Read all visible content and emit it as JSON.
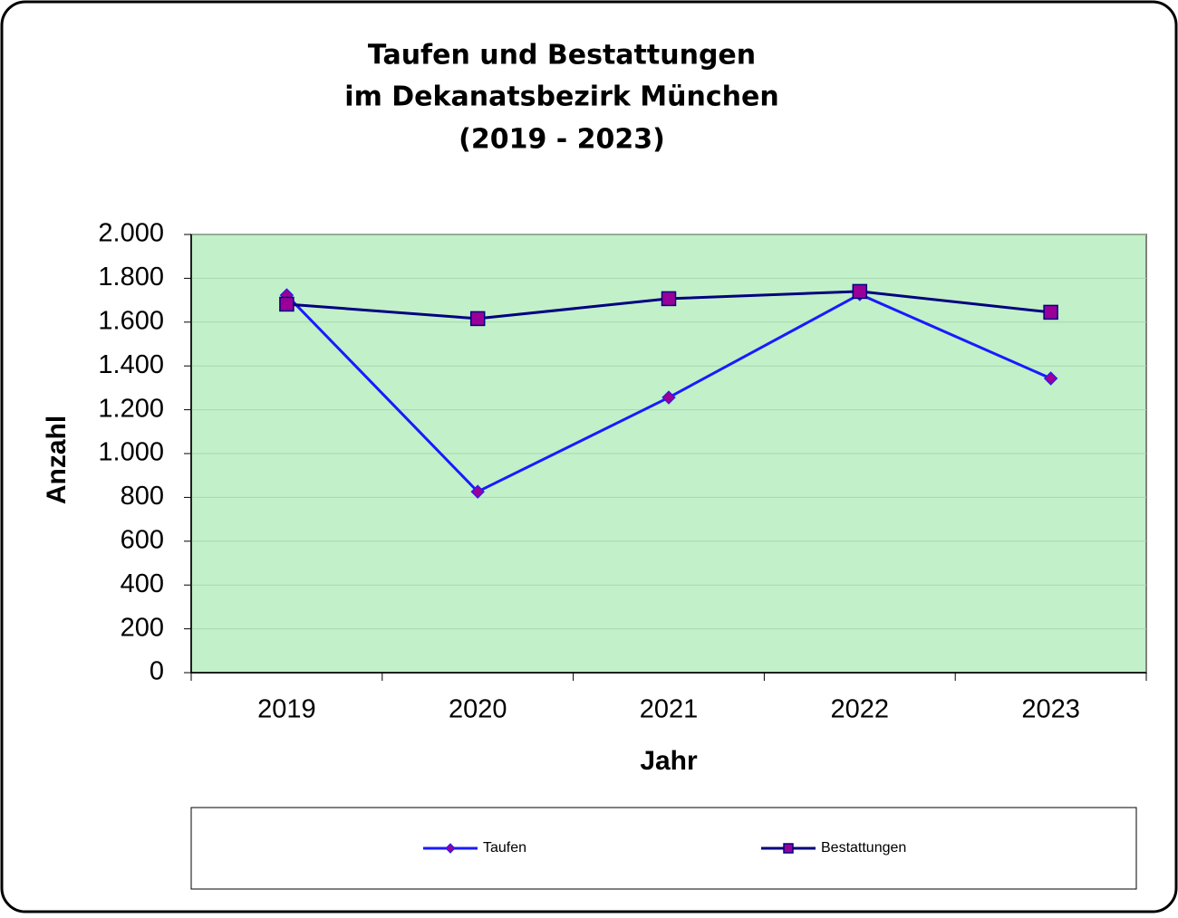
{
  "chart_data": {
    "type": "line",
    "title": [
      "Taufen und Bestattungen",
      "im Dekanatsbezirk München",
      "(2019 - 2023)"
    ],
    "x_label": "Jahr",
    "y_label": "Anzahl",
    "categories": [
      "2019",
      "2020",
      "2021",
      "2022",
      "2023"
    ],
    "series": [
      {
        "name": "Taufen",
        "color": "#1a1aff",
        "marker": "diamond",
        "marker_color": "#990099",
        "values": [
          1723,
          826,
          1256,
          1727,
          1343
        ]
      },
      {
        "name": "Bestattungen",
        "color": "#000080",
        "marker": "square",
        "marker_color": "#990099",
        "values": [
          1682,
          1616,
          1707,
          1740,
          1645
        ]
      }
    ],
    "ylim": [
      0,
      2000
    ],
    "yticks": [
      0,
      200,
      400,
      600,
      800,
      {
        "value": 1000,
        "label": "1.000"
      },
      {
        "value": 1200,
        "label": "1.200"
      },
      {
        "value": 1400,
        "label": "1.400"
      },
      {
        "value": 1600,
        "label": "1.600"
      },
      {
        "value": 1800,
        "label": "1.800"
      },
      {
        "value": 2000,
        "label": "2.000"
      }
    ],
    "grid": true,
    "plot_background": "#c2f0c8",
    "legend": "bottom"
  }
}
